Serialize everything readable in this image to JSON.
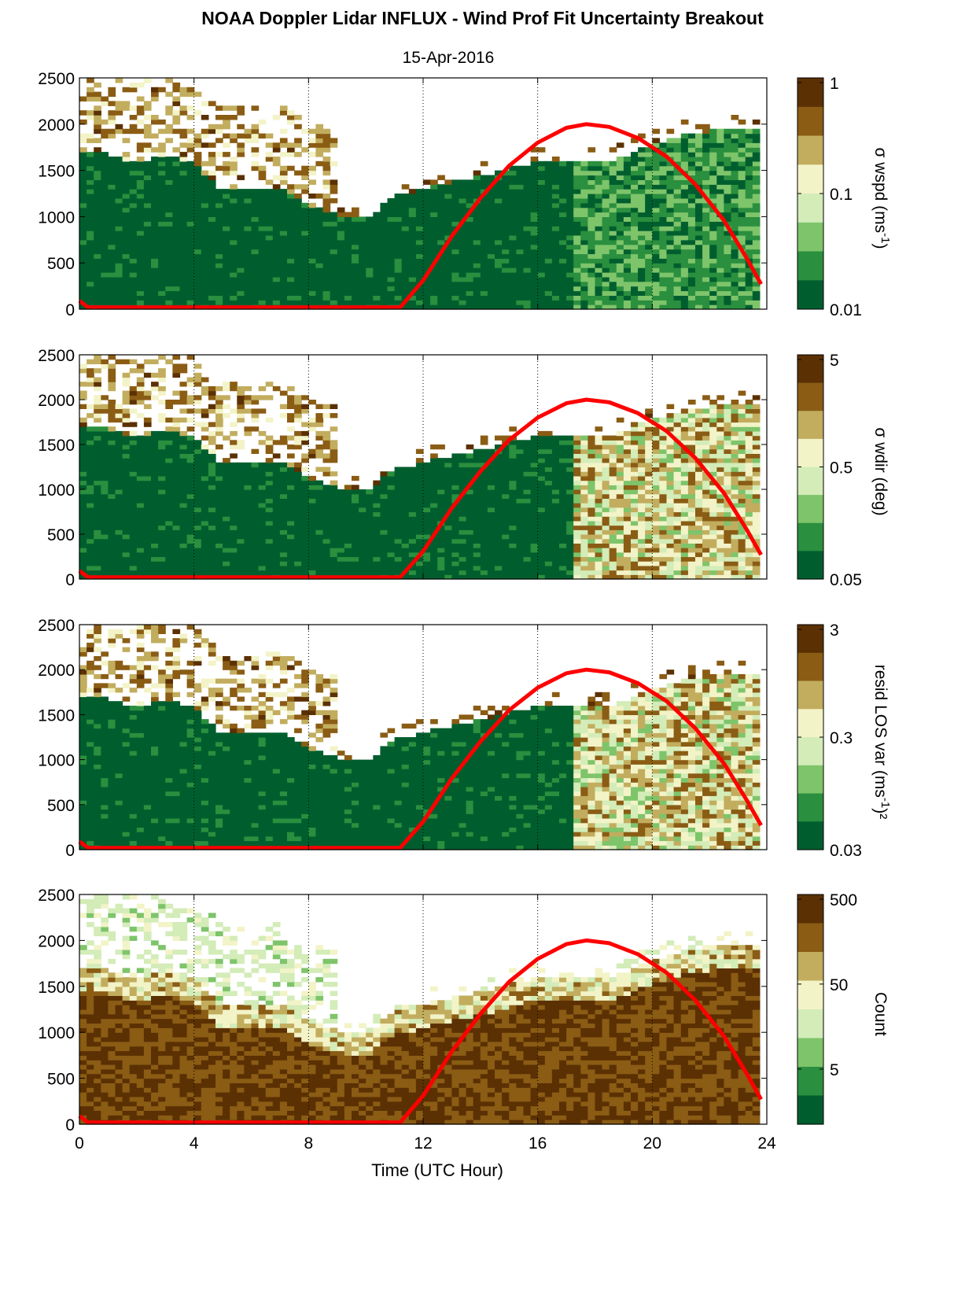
{
  "title": "NOAA Doppler Lidar INFLUX - Wind Prof Fit Uncertainty Breakout",
  "subtitle": "15-Apr-2016",
  "colors": {
    "curve": "#ff0000",
    "colormap": [
      "#005e2e",
      "#2a8f3e",
      "#7ec46a",
      "#d3ecb8",
      "#f3f3c8",
      "#c2ad5e",
      "#8a5c14",
      "#5b3003"
    ],
    "grid": "#000000"
  },
  "chart_data": [
    {
      "type": "heatmap",
      "xlabel": "",
      "ylabel": "",
      "xlim": [
        0,
        24
      ],
      "ylim": [
        0,
        2500
      ],
      "x_ticks": [
        0,
        4,
        8,
        12,
        16,
        20,
        24
      ],
      "y_ticks": [
        0,
        500,
        1000,
        1500,
        2000,
        2500
      ],
      "grid": "vertical dotted at 4-hour intervals",
      "colorbar": {
        "label": "σ wspd (ms",
        "label_sup": "-1",
        "label_tail": ")",
        "scale": "log",
        "ticks": [
          "1",
          "0.1",
          "0.01"
        ],
        "range": [
          0.01,
          1
        ]
      },
      "data_top": [
        [
          0,
          1700
        ],
        [
          1,
          1650
        ],
        [
          2,
          1550
        ],
        [
          3,
          1650
        ],
        [
          4,
          1550
        ],
        [
          5,
          1250
        ],
        [
          6,
          1300
        ],
        [
          7,
          1300
        ],
        [
          8,
          1100
        ],
        [
          9,
          1000
        ],
        [
          10,
          950
        ],
        [
          11,
          1200
        ],
        [
          12,
          1280
        ],
        [
          13,
          1350
        ],
        [
          14,
          1420
        ],
        [
          15,
          1500
        ],
        [
          16,
          1560
        ],
        [
          17,
          1560
        ],
        [
          18,
          1550
        ],
        [
          19,
          1620
        ],
        [
          20,
          1750
        ],
        [
          21,
          1850
        ],
        [
          22,
          1900
        ],
        [
          23,
          1920
        ],
        [
          23.7,
          1900
        ]
      ],
      "curve": [
        [
          0,
          90
        ],
        [
          0.3,
          20
        ],
        [
          11.2,
          20
        ],
        [
          12,
          310
        ],
        [
          13,
          790
        ],
        [
          14,
          1200
        ],
        [
          15,
          1550
        ],
        [
          16,
          1800
        ],
        [
          17,
          1960
        ],
        [
          17.7,
          2000
        ],
        [
          18.5,
          1970
        ],
        [
          19.5,
          1850
        ],
        [
          20.5,
          1650
        ],
        [
          21.5,
          1350
        ],
        [
          22.5,
          960
        ],
        [
          23.3,
          550
        ],
        [
          23.8,
          270
        ]
      ]
    },
    {
      "type": "heatmap",
      "xlabel": "",
      "ylabel": "",
      "xlim": [
        0,
        24
      ],
      "ylim": [
        0,
        2500
      ],
      "x_ticks": [
        0,
        4,
        8,
        12,
        16,
        20,
        24
      ],
      "y_ticks": [
        0,
        500,
        1000,
        1500,
        2000,
        2500
      ],
      "grid": "vertical dotted at 4-hour intervals",
      "colorbar": {
        "label": "σ wdir (deg)",
        "label_sup": "",
        "label_tail": "",
        "scale": "log",
        "ticks": [
          "5",
          "0.5",
          "0.05"
        ],
        "range": [
          0.05,
          5
        ]
      },
      "data_top": [
        [
          0,
          1700
        ],
        [
          1,
          1650
        ],
        [
          2,
          1550
        ],
        [
          3,
          1650
        ],
        [
          4,
          1550
        ],
        [
          5,
          1250
        ],
        [
          6,
          1300
        ],
        [
          7,
          1300
        ],
        [
          8,
          1100
        ],
        [
          9,
          1000
        ],
        [
          10,
          950
        ],
        [
          11,
          1200
        ],
        [
          12,
          1280
        ],
        [
          13,
          1350
        ],
        [
          14,
          1420
        ],
        [
          15,
          1500
        ],
        [
          16,
          1560
        ],
        [
          17,
          1560
        ],
        [
          18,
          1550
        ],
        [
          19,
          1620
        ],
        [
          20,
          1750
        ],
        [
          21,
          1850
        ],
        [
          22,
          1900
        ],
        [
          23,
          1920
        ],
        [
          23.7,
          1900
        ]
      ],
      "curve": [
        [
          0,
          90
        ],
        [
          0.3,
          20
        ],
        [
          11.2,
          20
        ],
        [
          12,
          310
        ],
        [
          13,
          790
        ],
        [
          14,
          1200
        ],
        [
          15,
          1550
        ],
        [
          16,
          1800
        ],
        [
          17,
          1960
        ],
        [
          17.7,
          2000
        ],
        [
          18.5,
          1970
        ],
        [
          19.5,
          1850
        ],
        [
          20.5,
          1650
        ],
        [
          21.5,
          1350
        ],
        [
          22.5,
          960
        ],
        [
          23.3,
          550
        ],
        [
          23.8,
          270
        ]
      ]
    },
    {
      "type": "heatmap",
      "xlabel": "",
      "ylabel": "",
      "xlim": [
        0,
        24
      ],
      "ylim": [
        0,
        2500
      ],
      "x_ticks": [
        0,
        4,
        8,
        12,
        16,
        20,
        24
      ],
      "y_ticks": [
        0,
        500,
        1000,
        1500,
        2000,
        2500
      ],
      "grid": "vertical dotted at 4-hour intervals",
      "colorbar": {
        "label": "resid LOS var (ms",
        "label_sup": "-1",
        "label_tail": ")²",
        "scale": "log",
        "ticks": [
          "3",
          "0.3",
          "0.03"
        ],
        "range": [
          0.03,
          3
        ]
      },
      "data_top": [
        [
          0,
          1700
        ],
        [
          1,
          1650
        ],
        [
          2,
          1550
        ],
        [
          3,
          1650
        ],
        [
          4,
          1550
        ],
        [
          5,
          1250
        ],
        [
          6,
          1300
        ],
        [
          7,
          1300
        ],
        [
          8,
          1100
        ],
        [
          9,
          1000
        ],
        [
          10,
          950
        ],
        [
          11,
          1200
        ],
        [
          12,
          1280
        ],
        [
          13,
          1350
        ],
        [
          14,
          1420
        ],
        [
          15,
          1500
        ],
        [
          16,
          1560
        ],
        [
          17,
          1560
        ],
        [
          18,
          1550
        ],
        [
          19,
          1620
        ],
        [
          20,
          1750
        ],
        [
          21,
          1850
        ],
        [
          22,
          1900
        ],
        [
          23,
          1920
        ],
        [
          23.7,
          1900
        ]
      ],
      "curve": [
        [
          0,
          90
        ],
        [
          0.3,
          20
        ],
        [
          11.2,
          20
        ],
        [
          12,
          310
        ],
        [
          13,
          790
        ],
        [
          14,
          1200
        ],
        [
          15,
          1550
        ],
        [
          16,
          1800
        ],
        [
          17,
          1960
        ],
        [
          17.7,
          2000
        ],
        [
          18.5,
          1970
        ],
        [
          19.5,
          1850
        ],
        [
          20.5,
          1650
        ],
        [
          21.5,
          1350
        ],
        [
          22.5,
          960
        ],
        [
          23.3,
          550
        ],
        [
          23.8,
          270
        ]
      ]
    },
    {
      "type": "heatmap",
      "xlabel": "Time (UTC Hour)",
      "ylabel": "",
      "xlim": [
        0,
        24
      ],
      "ylim": [
        0,
        2500
      ],
      "x_ticks": [
        0,
        4,
        8,
        12,
        16,
        20,
        24
      ],
      "y_ticks": [
        0,
        500,
        1000,
        1500,
        2000,
        2500
      ],
      "grid": "vertical dotted at 4-hour intervals",
      "colorbar": {
        "label": "Count",
        "label_sup": "",
        "label_tail": "",
        "scale": "log",
        "ticks": [
          "500",
          "50",
          "5"
        ],
        "range": [
          1,
          500
        ]
      },
      "data_top": [
        [
          0,
          1700
        ],
        [
          1,
          1650
        ],
        [
          2,
          1550
        ],
        [
          3,
          1650
        ],
        [
          4,
          1550
        ],
        [
          5,
          1250
        ],
        [
          6,
          1300
        ],
        [
          7,
          1300
        ],
        [
          8,
          1100
        ],
        [
          9,
          1000
        ],
        [
          10,
          950
        ],
        [
          11,
          1200
        ],
        [
          12,
          1280
        ],
        [
          13,
          1350
        ],
        [
          14,
          1420
        ],
        [
          15,
          1500
        ],
        [
          16,
          1560
        ],
        [
          17,
          1560
        ],
        [
          18,
          1550
        ],
        [
          19,
          1620
        ],
        [
          20,
          1750
        ],
        [
          21,
          1850
        ],
        [
          22,
          1900
        ],
        [
          23,
          1920
        ],
        [
          23.7,
          1900
        ]
      ],
      "curve": [
        [
          0,
          90
        ],
        [
          0.3,
          20
        ],
        [
          11.2,
          20
        ],
        [
          12,
          310
        ],
        [
          13,
          790
        ],
        [
          14,
          1200
        ],
        [
          15,
          1550
        ],
        [
          16,
          1800
        ],
        [
          17,
          1960
        ],
        [
          17.7,
          2000
        ],
        [
          18.5,
          1970
        ],
        [
          19.5,
          1850
        ],
        [
          20.5,
          1650
        ],
        [
          21.5,
          1350
        ],
        [
          22.5,
          960
        ],
        [
          23.3,
          550
        ],
        [
          23.8,
          270
        ]
      ]
    }
  ]
}
